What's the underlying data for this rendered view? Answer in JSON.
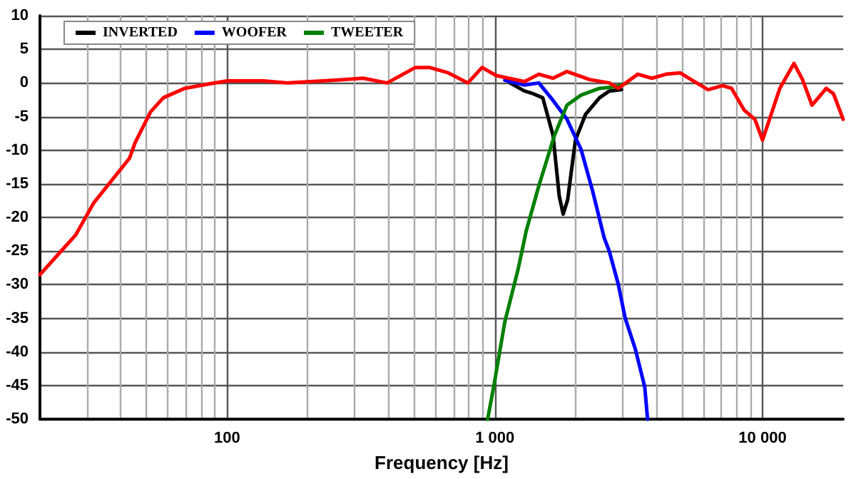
{
  "chart_data": {
    "type": "line",
    "xlabel": "Frequency [Hz]",
    "log": "x",
    "grid": true,
    "legend": "top left",
    "marker": "none",
    "line_style": "solid",
    "xlim": [
      20,
      20000
    ],
    "xticks": [
      100,
      {
        "value": 1000,
        "label": "1 000"
      },
      {
        "value": 10000,
        "label": "10 000"
      }
    ],
    "ylim": [
      -50,
      10
    ],
    "yticks": [
      -50,
      -45,
      -40,
      -35,
      -30,
      -25,
      -20,
      -15,
      -10,
      -5,
      0,
      5,
      10
    ],
    "series": [
      {
        "name": "INVERTED",
        "color": "#000000",
        "x": [
          1140,
          1290,
          1390,
          1510,
          1650,
          1740,
          1800,
          1870,
          2000,
          2180,
          2460,
          2680,
          2970
        ],
        "values": [
          0,
          -1.2,
          -1.6,
          -2.2,
          -7.8,
          -16.8,
          -19.5,
          -17.4,
          -8.5,
          -4.7,
          -2.2,
          -1.2,
          -1
        ]
      },
      {
        "name": "WOOFER",
        "color": "#0000ff",
        "x": [
          1090,
          1290,
          1460,
          1650,
          1860,
          2100,
          2320,
          2560,
          2680,
          2890,
          3070,
          3350,
          3630,
          3720
        ],
        "values": [
          0.4,
          -0.3,
          0,
          -2.6,
          -5.4,
          -9.9,
          -16.1,
          -23,
          -25.1,
          -29.9,
          -35,
          -39.6,
          -45.2,
          -50
        ]
      },
      {
        "name": "TWEETER",
        "color": "#008000",
        "x": [
          940,
          990,
          1090,
          1220,
          1310,
          1460,
          1670,
          1860,
          2100,
          2460,
          2780,
          3130
        ],
        "values": [
          -50,
          -45.2,
          -35.5,
          -27.8,
          -22,
          -15.3,
          -7.8,
          -3.3,
          -1.8,
          -0.8,
          -0.6,
          0
        ]
      },
      {
        "color": "#ff0000",
        "x": [
          20,
          24,
          27.2,
          31.8,
          43.2,
          45.3,
          51.8,
          57.8,
          69.4,
          84,
          100,
          137,
          169,
          253,
          322,
          396,
          505,
          570,
          670,
          793,
          896,
          1012,
          1290,
          1460,
          1650,
          1860,
          2260,
          2680,
          2890,
          3420,
          3860,
          4360,
          4920,
          5560,
          6260,
          7080,
          7660,
          8520,
          9360,
          10000,
          11600,
          13100,
          14100,
          15300,
          17300,
          18400,
          20000
        ],
        "values": [
          -28.5,
          -25,
          -22.6,
          -17.8,
          -11.2,
          -8.9,
          -4.3,
          -2.2,
          -0.8,
          -0.2,
          0.3,
          0.3,
          0,
          0.4,
          0.7,
          0,
          2.3,
          2.3,
          1.5,
          0,
          2.3,
          1.1,
          0.2,
          1.3,
          0.7,
          1.7,
          0.5,
          0,
          -0.8,
          1.3,
          0.7,
          1.3,
          1.5,
          0.2,
          -1,
          -0.4,
          -0.8,
          -4,
          -5.4,
          -8.5,
          -0.8,
          2.9,
          0.5,
          -3.3,
          -0.8,
          -1.6,
          -5.4
        ]
      }
    ]
  }
}
